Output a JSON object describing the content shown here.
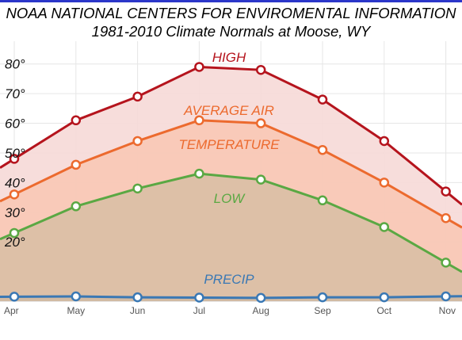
{
  "title": {
    "line1": "NOAA NATIONAL CENTERS FOR ENVIROMENTAL INFORMATION",
    "line2": "1981-2010 Climate Normals at Moose, WY"
  },
  "chart_data": {
    "type": "area",
    "categories": [
      "Apr",
      "May",
      "Jun",
      "Jul",
      "Aug",
      "Sep",
      "Oct",
      "Nov"
    ],
    "yticks": [
      "20°",
      "30°",
      "40°",
      "50°",
      "60°",
      "70°",
      "80°"
    ],
    "ylim": [
      0,
      85
    ],
    "grid": true,
    "series": [
      {
        "name": "HIGH",
        "color": "#b5141d",
        "fill": "#f6d9d7",
        "values": [
          48,
          61,
          69,
          79,
          78,
          68,
          54,
          37
        ]
      },
      {
        "name": "AVERAGE AIR TEMPERATURE",
        "color": "#ec6a2e",
        "fill": "#f8c8b5",
        "values": [
          36,
          46,
          54,
          61,
          60,
          51,
          40,
          28
        ]
      },
      {
        "name": "LOW",
        "color": "#5aa843",
        "fill": "#d9bfa5",
        "values": [
          23,
          32,
          38,
          43,
          41,
          34,
          25,
          13
        ]
      },
      {
        "name": "PRECIP",
        "color": "#3a78b4",
        "fill": "#cfb9a3",
        "values": [
          1.5,
          1.6,
          1.3,
          1.2,
          1.1,
          1.3,
          1.3,
          1.6
        ]
      }
    ],
    "annotations": [
      {
        "text": "HIGH",
        "color": "#b5141d"
      },
      {
        "text": "AVERAGE AIR",
        "color": "#ec6a2e"
      },
      {
        "text": "TEMPERATURE",
        "color": "#ec6a2e"
      },
      {
        "text": "LOW",
        "color": "#5aa843"
      },
      {
        "text": "PRECIP",
        "color": "#3a78b4"
      }
    ]
  }
}
